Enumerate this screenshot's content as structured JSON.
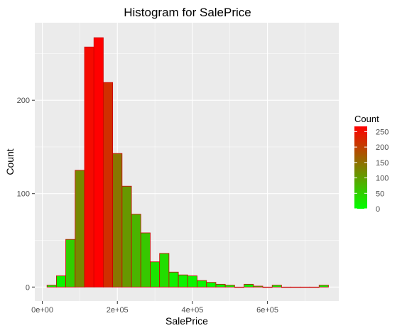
{
  "chart_data": {
    "type": "bar",
    "title": "Histogram for SalePrice",
    "xlabel": "SalePrice",
    "ylabel": "Count",
    "xlim": [
      -20000,
      790000
    ],
    "ylim": [
      -15,
      283
    ],
    "x_ticks": [
      0,
      200000,
      400000,
      600000
    ],
    "x_tick_labels": [
      "0e+00",
      "2e+05",
      "4e+05",
      "6e+05"
    ],
    "y_ticks": [
      0,
      100,
      200
    ],
    "y_tick_labels": [
      "0",
      "100",
      "200"
    ],
    "bin_width": 25000,
    "bins": [
      {
        "x": 25000,
        "count": 2
      },
      {
        "x": 50000,
        "count": 12
      },
      {
        "x": 75000,
        "count": 51
      },
      {
        "x": 100000,
        "count": 125
      },
      {
        "x": 125000,
        "count": 257
      },
      {
        "x": 150000,
        "count": 267
      },
      {
        "x": 175000,
        "count": 219
      },
      {
        "x": 200000,
        "count": 143
      },
      {
        "x": 225000,
        "count": 108
      },
      {
        "x": 250000,
        "count": 78
      },
      {
        "x": 275000,
        "count": 58
      },
      {
        "x": 300000,
        "count": 27
      },
      {
        "x": 325000,
        "count": 36
      },
      {
        "x": 350000,
        "count": 16
      },
      {
        "x": 375000,
        "count": 13
      },
      {
        "x": 400000,
        "count": 12
      },
      {
        "x": 425000,
        "count": 7
      },
      {
        "x": 450000,
        "count": 5
      },
      {
        "x": 475000,
        "count": 3
      },
      {
        "x": 500000,
        "count": 2
      },
      {
        "x": 525000,
        "count": 0
      },
      {
        "x": 550000,
        "count": 3
      },
      {
        "x": 575000,
        "count": 1
      },
      {
        "x": 600000,
        "count": 0
      },
      {
        "x": 625000,
        "count": 2
      },
      {
        "x": 650000,
        "count": 0
      },
      {
        "x": 675000,
        "count": 0
      },
      {
        "x": 700000,
        "count": 0
      },
      {
        "x": 725000,
        "count": 0
      },
      {
        "x": 750000,
        "count": 2
      }
    ],
    "grid": true,
    "legend": {
      "title": "Count",
      "position": "right",
      "ticks": [
        0,
        50,
        100,
        150,
        200,
        250
      ],
      "tick_labels": [
        "0",
        "50",
        "100",
        "150",
        "200",
        "250"
      ],
      "min": 0,
      "max": 267,
      "low_color": "#00ff00",
      "high_color": "#ff0000"
    },
    "colors": {
      "panel_bg": "#ebebeb",
      "grid_major": "#ffffff",
      "bar_outline": "#cc0000"
    }
  }
}
